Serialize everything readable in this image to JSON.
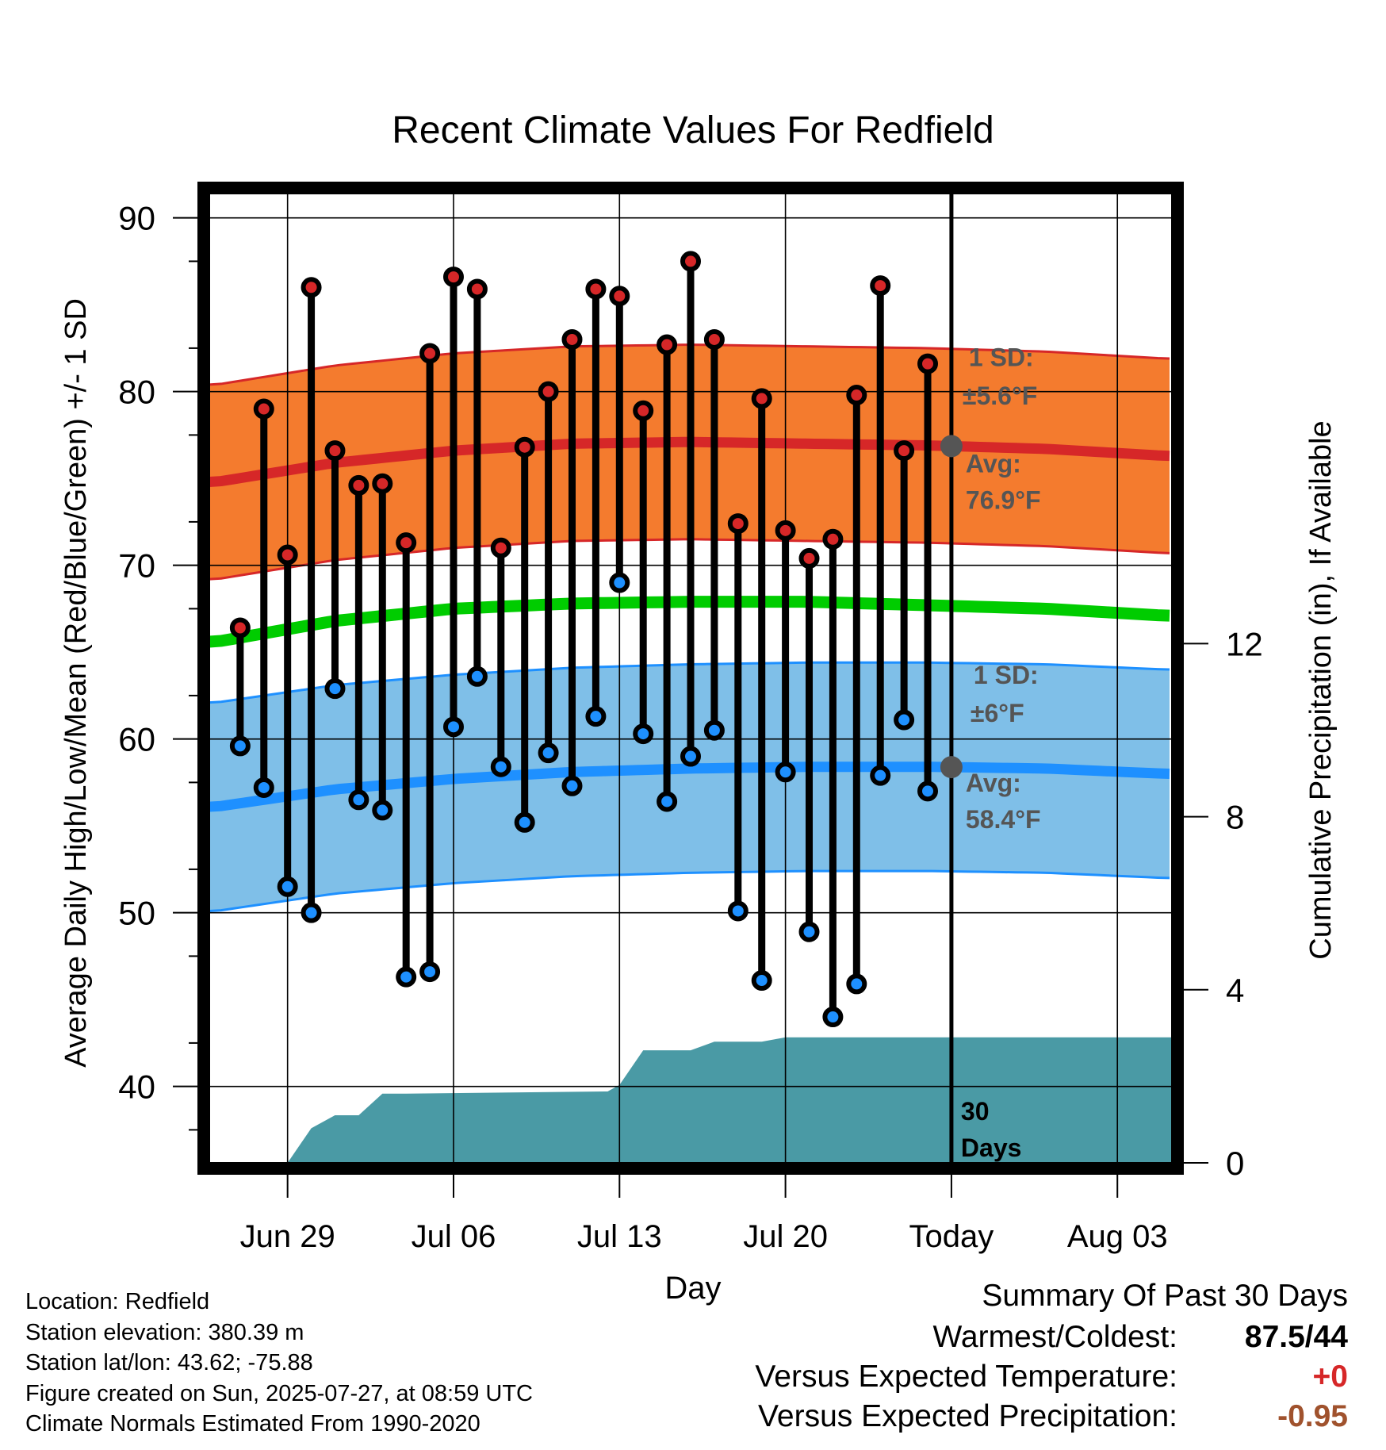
{
  "chart_data": {
    "type": "line",
    "title": "Recent Climate Values For Redfield",
    "xlabel": "Day",
    "ylabel_left": "Average Daily High/Low/Mean (Red/Blue/Green) +/- 1 SD",
    "ylabel_right": "Cumulative Precipitation (in), If Available",
    "ylim_left": [
      35.6,
      91.4
    ],
    "ylim_right": [
      0,
      22.4
    ],
    "yticks_left": [
      40,
      50,
      60,
      70,
      80,
      90
    ],
    "yticks_right": [
      0,
      4,
      8,
      12
    ],
    "x_tick_labels": [
      "Jun 29",
      "Jul 06",
      "Jul 13",
      "Jul 20",
      "Today",
      "Aug 03"
    ],
    "x_tick_days": [
      3,
      10,
      17,
      24,
      31,
      38
    ],
    "xlim_days": [
      -0.3,
      40.3
    ],
    "today_day": 31,
    "grid": true,
    "series": [
      {
        "name": "High",
        "color": "#d62728",
        "values": [
          66.4,
          79.0,
          70.6,
          86.0,
          76.6,
          74.6,
          74.7,
          71.3,
          82.2,
          86.6,
          85.9,
          71.0,
          76.8,
          80.0,
          83.0,
          85.9,
          85.5,
          78.9,
          82.7,
          87.5,
          83.0,
          72.4,
          79.6,
          72.0,
          70.4,
          71.5,
          79.8,
          86.1,
          76.6,
          81.6
        ]
      },
      {
        "name": "Low",
        "color": "#1e90ff",
        "values": [
          59.6,
          57.2,
          51.5,
          50.0,
          62.9,
          56.5,
          55.9,
          46.3,
          46.6,
          60.7,
          63.6,
          58.4,
          55.2,
          59.2,
          57.3,
          61.3,
          69.0,
          60.3,
          56.4,
          59.0,
          60.5,
          50.1,
          46.1,
          58.1,
          48.9,
          44.0,
          45.9,
          57.9,
          61.1,
          57.0
        ]
      }
    ],
    "first_obs_day": 1,
    "normals": {
      "days": [
        0,
        5,
        10,
        15,
        20,
        25,
        30,
        35,
        40
      ],
      "high_avg": [
        74.8,
        75.9,
        76.6,
        77.0,
        77.1,
        77.0,
        76.9,
        76.7,
        76.3
      ],
      "high_sd": 5.6,
      "mean_avg": [
        65.6,
        66.8,
        67.5,
        67.8,
        67.9,
        67.9,
        67.7,
        67.5,
        67.1
      ],
      "low_avg": [
        56.1,
        57.1,
        57.7,
        58.1,
        58.3,
        58.4,
        58.4,
        58.3,
        58.0
      ],
      "low_sd": 6.0,
      "high_color": "#d62728",
      "high_band_color": "#f47b2e",
      "mean_color": "#00cc00",
      "low_color": "#1e90ff",
      "low_band_color": "#7fbfe8"
    },
    "precip": {
      "color": "#4a9aa5",
      "days": [
        -0.3,
        3,
        4,
        5,
        6,
        7,
        8,
        16.5,
        17,
        18,
        20,
        21,
        23,
        24,
        31,
        40.3
      ],
      "values": [
        0,
        0,
        0.8,
        1.1,
        1.1,
        1.6,
        1.6,
        1.65,
        1.8,
        2.6,
        2.6,
        2.8,
        2.8,
        2.9,
        2.9,
        2.9
      ]
    },
    "annotations": {
      "high_sd_label": "1 SD:",
      "high_sd_value": "±5.6°F",
      "high_avg_label": "Avg:",
      "high_avg_value": "76.9°F",
      "low_sd_label": "1 SD:",
      "low_sd_value": "±6°F",
      "low_avg_label": "Avg:",
      "low_avg_value": "58.4°F",
      "days_line1": "30",
      "days_line2": "Days"
    }
  },
  "station": {
    "location": "Location: Redfield",
    "elevation": "Station elevation: 380.39 m",
    "latlon": "Station lat/lon: 43.62; -75.88",
    "created": "Figure created on Sun, 2025-07-27, at 08:59 UTC",
    "normals_period": "Climate Normals Estimated From 1990-2020"
  },
  "summary": {
    "heading": "Summary Of Past 30 Days",
    "warmest_label": "Warmest/Coldest:",
    "warmest_value": "87.5/44",
    "temp_label": "Versus Expected Temperature:",
    "temp_value": "+0",
    "temp_color": "#d62728",
    "precip_label": "Versus Expected Precipitation:",
    "precip_value": "-0.95",
    "precip_color": "#a0522d"
  }
}
